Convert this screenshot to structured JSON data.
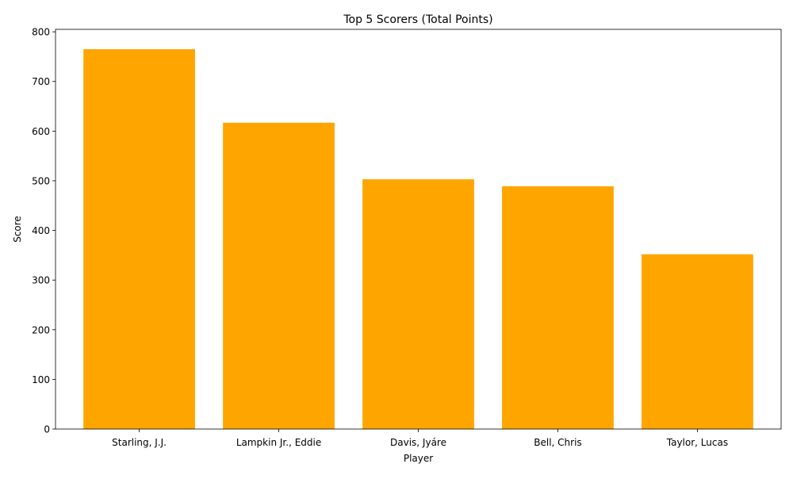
{
  "chart_data": {
    "type": "bar",
    "title": "Top 5 Scorers (Total Points)",
    "xlabel": "Player",
    "ylabel": "Score",
    "categories": [
      "Starling, J.J.",
      "Lampkin Jr., Eddie",
      "Davis, Jyáre",
      "Bell, Chris",
      "Taylor, Lucas"
    ],
    "values": [
      765,
      617,
      503,
      489,
      352
    ],
    "ylim": [
      0,
      805
    ],
    "yticks": [
      "0",
      "100",
      "200",
      "300",
      "400",
      "500",
      "600",
      "700",
      "800"
    ],
    "grid": false,
    "bar_color": "#ffa500"
  }
}
